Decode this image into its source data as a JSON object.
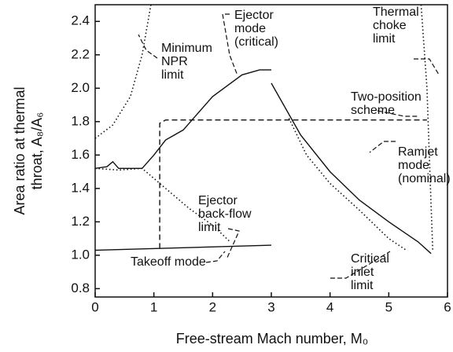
{
  "chart_data": {
    "type": "line",
    "x_label": "Free-stream Mach number, M₀",
    "y_label": [
      "Area ratio at thermal",
      "throat, A₈/A₆"
    ],
    "xlim": [
      0,
      6
    ],
    "ylim": [
      0.75,
      2.5
    ],
    "xticks": [
      0,
      1,
      2,
      3,
      4,
      5,
      6
    ],
    "yticks": [
      0.8,
      {
        "value": 1.0,
        "label": "1.0"
      },
      1.2,
      1.4,
      1.6,
      1.8,
      {
        "value": 2.0,
        "label": "2.0"
      },
      2.2,
      2.4
    ],
    "series": [
      {
        "label": [
          "Ejector",
          "mode",
          "(critical)"
        ],
        "style": "solid",
        "color": "#111111",
        "x": [
          0,
          0.2,
          0.3,
          0.4,
          0.8,
          1.0,
          1.2,
          1.5,
          2.0,
          2.5,
          2.8,
          3.0
        ],
        "values": [
          1.52,
          1.53,
          1.56,
          1.52,
          1.52,
          1.6,
          1.69,
          1.75,
          1.95,
          2.08,
          2.11,
          2.11
        ]
      },
      {
        "label": [
          "Minimum",
          "NPR",
          "limit"
        ],
        "style": "dotted",
        "color": "#111111",
        "x": [
          0,
          0.3,
          0.6,
          0.8,
          0.95
        ],
        "values": [
          1.7,
          1.78,
          1.95,
          2.2,
          2.5
        ]
      },
      {
        "label": [
          "Thermal",
          "choke",
          "limit"
        ],
        "style": "dotted",
        "color": "#111111",
        "x": [
          5.55,
          5.65,
          5.7,
          5.75
        ],
        "values": [
          2.5,
          2.0,
          1.5,
          1.02
        ]
      },
      {
        "label": [
          "Two-position",
          "scheme"
        ],
        "style": "dashed",
        "color": "#111111",
        "x": [
          1.1,
          1.1,
          1.2,
          5.65
        ],
        "values": [
          1.04,
          1.79,
          1.81,
          1.81
        ]
      },
      {
        "label": [
          "Ramjet",
          "mode",
          "(nominal)"
        ],
        "style": "solid",
        "color": "#111111",
        "x": [
          3.0,
          3.5,
          4.0,
          4.5,
          5.0,
          5.5,
          5.72
        ],
        "values": [
          2.03,
          1.72,
          1.5,
          1.33,
          1.2,
          1.08,
          1.01
        ]
      },
      {
        "label": [
          "Ejector",
          "back-flow",
          "limit"
        ],
        "style": "dotted",
        "color": "#111111",
        "x": [
          0,
          0.4,
          0.8,
          1.2,
          1.6,
          2.0,
          2.3
        ],
        "values": [
          1.52,
          1.51,
          1.52,
          1.4,
          1.28,
          1.18,
          1.08
        ]
      },
      {
        "label": [
          "Takeoff mode"
        ],
        "style": "solid",
        "color": "#111111",
        "x": [
          0,
          3.0
        ],
        "values": [
          1.03,
          1.06
        ]
      },
      {
        "label": [
          "Critical",
          "inlet",
          "limit"
        ],
        "style": "dotted",
        "color": "#111111",
        "x": [
          3.3,
          3.6,
          4.0,
          4.5,
          5.0,
          5.3
        ],
        "values": [
          1.82,
          1.6,
          1.43,
          1.27,
          1.1,
          1.03
        ]
      }
    ]
  }
}
